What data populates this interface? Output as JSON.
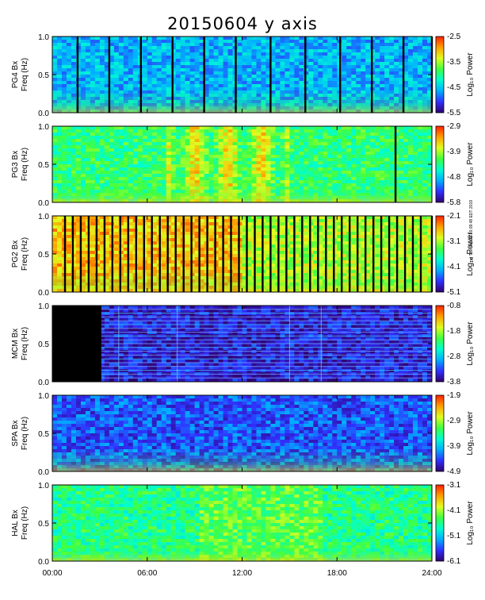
{
  "title": "20150604 y axis",
  "stamp": "rwl Tue Sep 24 00:09:48 EDT 2019",
  "chart_data": {
    "type": "heatmap",
    "xlabel": "",
    "x_ticks": [
      "00:00",
      "06:00",
      "12:00",
      "18:00",
      "24:00"
    ],
    "xlim_hours": [
      0,
      24
    ],
    "ylim_hz": [
      0.0,
      1.0
    ],
    "y_ticks": [
      "0.0",
      "0.5",
      "1.0"
    ],
    "colorbar_label": "Log₁₀ Power",
    "colormap": [
      "#300070",
      "#3030ff",
      "#00b0ff",
      "#00ffd0",
      "#40ff40",
      "#e0ff20",
      "#ffa000",
      "#ff2000"
    ],
    "panels": [
      {
        "ylabel": [
          "PG4 Bx",
          "Freq (Hz)"
        ],
        "cbar_ticks": [
          "-2.5",
          "-3.5",
          "-4.5",
          "-5.5"
        ],
        "base_level": 0.3,
        "data_gaps_hours": [
          1.6,
          3.6,
          5.6,
          7.6,
          9.6,
          11.6,
          13.8,
          16.0,
          18.2,
          20.2,
          22.2,
          24.0
        ]
      },
      {
        "ylabel": [
          "PG3 Bx",
          "Freq (Hz)"
        ],
        "cbar_ticks": [
          "-2.9",
          "-3.9",
          "-4.8",
          "-5.8"
        ],
        "base_level": 0.52,
        "data_gaps_hours": [
          21.7
        ]
      },
      {
        "ylabel": [
          "PG2 Bx",
          "Freq (Hz)"
        ],
        "cbar_ticks": [
          "-2.1",
          "-3.1",
          "-4.1",
          "-5.1"
        ],
        "base_level": 0.75,
        "data_gaps_hours": [
          0.8,
          1.3,
          1.8,
          2.3,
          2.8,
          3.3,
          3.8,
          4.3,
          4.8,
          5.3,
          5.8,
          6.3,
          6.8,
          7.3,
          7.8,
          8.3,
          8.8,
          9.3,
          9.8,
          10.3,
          10.8,
          11.3,
          11.8,
          12.3,
          12.8,
          13.3,
          13.8,
          14.3,
          14.8,
          15.3,
          15.8,
          16.3,
          16.8,
          17.3,
          17.8,
          18.3,
          18.8,
          19.3,
          19.8,
          20.3,
          20.8,
          21.3,
          21.8,
          22.3,
          22.8,
          23.3,
          24.0
        ]
      },
      {
        "ylabel": [
          "MCM Bx",
          "Freq (Hz)"
        ],
        "cbar_ticks": [
          "-0.8",
          "-1.8",
          "-2.8",
          "-3.8"
        ],
        "base_level": 0.1,
        "no_data_until_hours": 3.1
      },
      {
        "ylabel": [
          "SPA Bx",
          "Freq (Hz)"
        ],
        "cbar_ticks": [
          "-1.9",
          "-2.9",
          "-3.9",
          "-4.9"
        ],
        "base_level": 0.18,
        "data_gaps_hours": []
      },
      {
        "ylabel": [
          "HAL Bx",
          "Freq (Hz)"
        ],
        "cbar_ticks": [
          "-3.1",
          "-4.1",
          "-5.1",
          "-6.1"
        ],
        "base_level": 0.5,
        "data_gaps_hours": []
      }
    ]
  }
}
